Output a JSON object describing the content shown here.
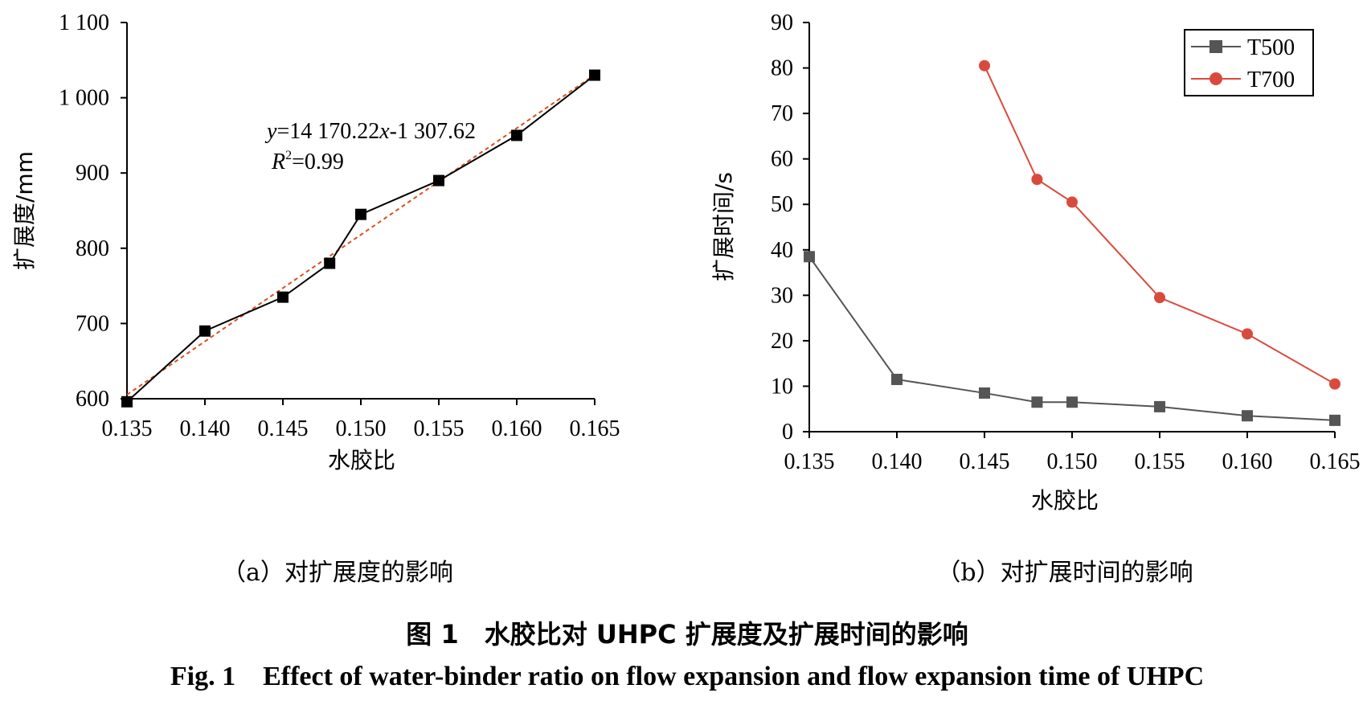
{
  "chart_data": [
    {
      "type": "line",
      "panel_caption": "（a）对扩展度的影响",
      "xlabel": "水胶比",
      "ylabel": "扩展度/mm",
      "xlim": [
        0.135,
        0.165
      ],
      "ylim": [
        600,
        1100
      ],
      "x_ticks": [
        "0.135",
        "0.140",
        "0.145",
        "0.150",
        "0.155",
        "0.160",
        "0.165"
      ],
      "y_ticks": [
        "600",
        "700",
        "800",
        "900",
        "1 000",
        "1 100"
      ],
      "series": [
        {
          "points": [
            {
              "x": 0.135,
              "y": 596
            },
            {
              "x": 0.14,
              "y": 690
            },
            {
              "x": 0.145,
              "y": 735
            },
            {
              "x": 0.148,
              "y": 780
            },
            {
              "x": 0.15,
              "y": 845
            },
            {
              "x": 0.155,
              "y": 890
            },
            {
              "x": 0.16,
              "y": 950
            },
            {
              "x": 0.165,
              "y": 1030
            }
          ],
          "color": "#000000",
          "marker": "square"
        }
      ],
      "fit": {
        "slope": 14170.22,
        "intercept": -1307.62,
        "color": "#d9501e"
      },
      "annotation": {
        "line1_y": "y",
        "line1_rest_a": "=14 170.22",
        "line1_x": "x",
        "line1_rest_b": "-1 307.62",
        "line2_r": "R",
        "line2_sup": "2",
        "line2_rest": "=0.99"
      }
    },
    {
      "type": "line",
      "panel_caption": "（b）对扩展时间的影响",
      "xlabel": "水胶比",
      "ylabel": "扩展时间/s",
      "xlim": [
        0.135,
        0.165
      ],
      "ylim": [
        0,
        90
      ],
      "x_ticks": [
        "0.135",
        "0.140",
        "0.145",
        "0.150",
        "0.155",
        "0.160",
        "0.165"
      ],
      "y_ticks": [
        "0",
        "10",
        "20",
        "30",
        "40",
        "50",
        "60",
        "70",
        "80",
        "90"
      ],
      "legend_placement": "top-right",
      "series": [
        {
          "name": "T500",
          "color": "#555555",
          "marker": "square",
          "points": [
            {
              "x": 0.135,
              "y": 38.5
            },
            {
              "x": 0.14,
              "y": 11.5
            },
            {
              "x": 0.145,
              "y": 8.5
            },
            {
              "x": 0.148,
              "y": 6.5
            },
            {
              "x": 0.15,
              "y": 6.5
            },
            {
              "x": 0.155,
              "y": 5.5
            },
            {
              "x": 0.16,
              "y": 3.5
            },
            {
              "x": 0.165,
              "y": 2.5
            }
          ]
        },
        {
          "name": "T700",
          "color": "#d94a3e",
          "marker": "circle",
          "points": [
            {
              "x": 0.145,
              "y": 80.5
            },
            {
              "x": 0.148,
              "y": 55.5
            },
            {
              "x": 0.15,
              "y": 50.5
            },
            {
              "x": 0.155,
              "y": 29.5
            },
            {
              "x": 0.16,
              "y": 21.5
            },
            {
              "x": 0.165,
              "y": 10.5
            }
          ]
        }
      ]
    }
  ],
  "figure_caption_cn": "图 1　水胶比对 UHPC 扩展度及扩展时间的影响",
  "figure_caption_en": "Fig. 1　Effect of water-binder ratio on flow expansion and flow expansion time of UHPC"
}
